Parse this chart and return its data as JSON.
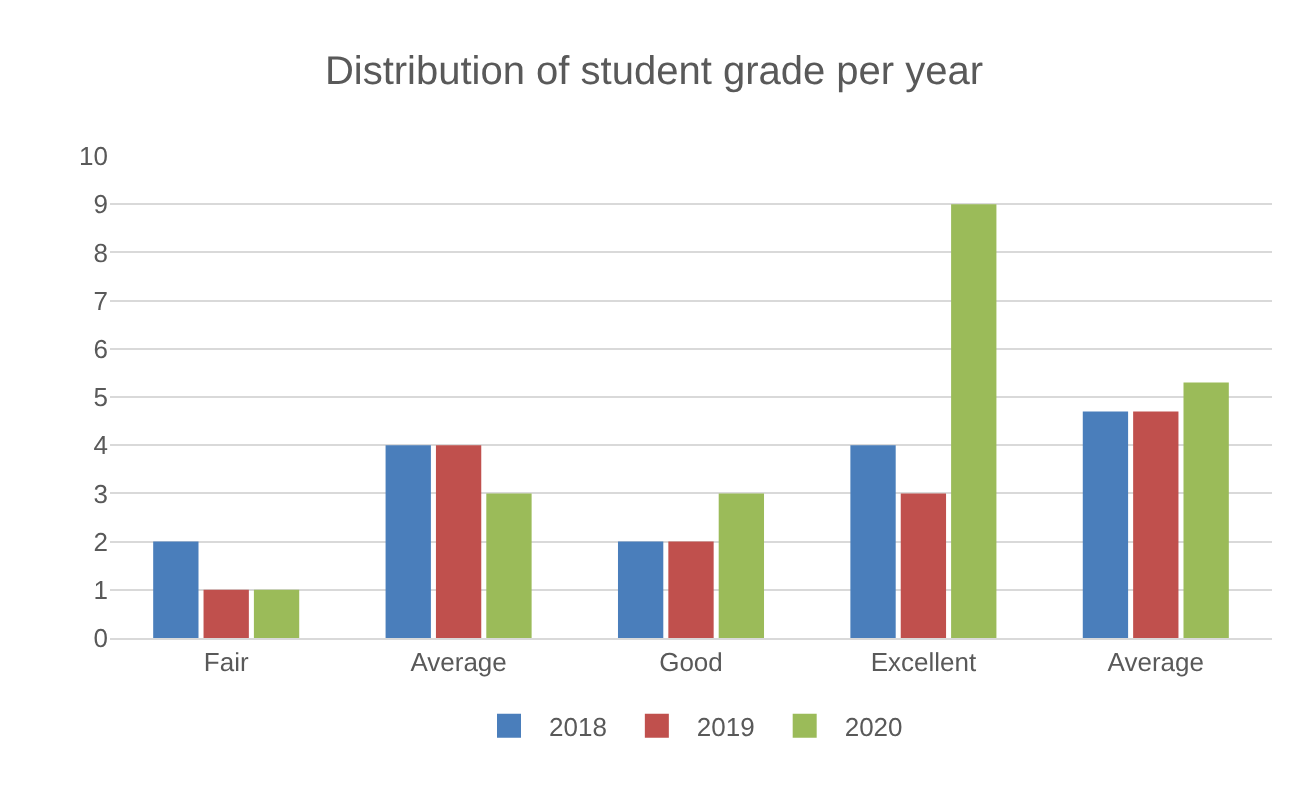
{
  "chart_data": {
    "type": "bar",
    "title": "Distribution of student grade per year",
    "categories": [
      "Fair",
      "Average",
      "Good",
      "Excellent",
      "Average"
    ],
    "series": [
      {
        "name": "2018",
        "color": "#4a7ebb",
        "values": [
          2,
          4,
          2,
          4,
          4.7
        ]
      },
      {
        "name": "2019",
        "color": "#c0504d",
        "values": [
          1,
          4,
          2,
          3,
          4.7
        ]
      },
      {
        "name": "2020",
        "color": "#9bbb59",
        "values": [
          1,
          3,
          3,
          9,
          5.3
        ]
      }
    ],
    "ylim": [
      0,
      10
    ],
    "yticks": [
      0,
      1,
      2,
      3,
      4,
      5,
      6,
      7,
      8,
      9,
      10
    ],
    "grid": "y",
    "legend": "bottom"
  }
}
